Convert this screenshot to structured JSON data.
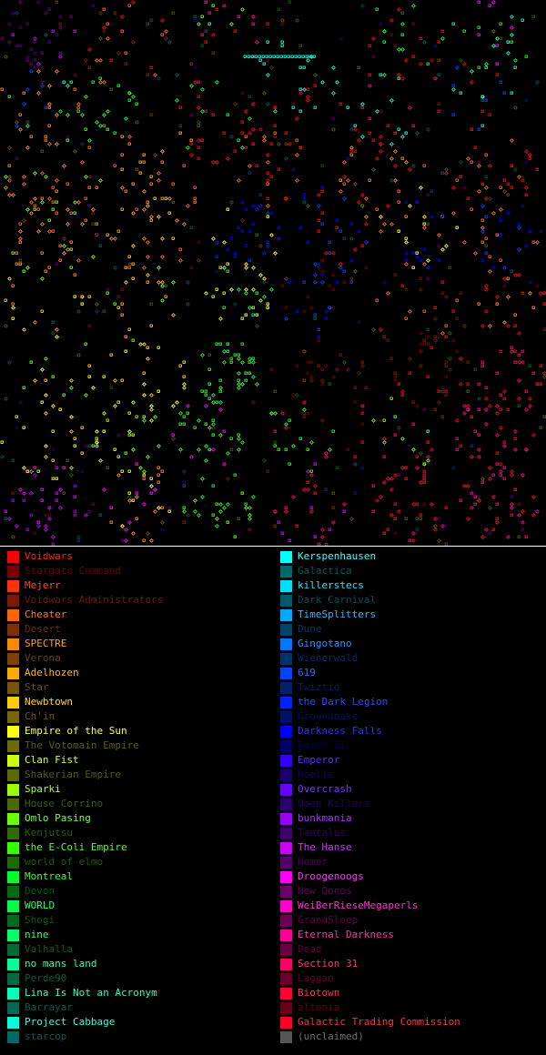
{
  "map": {
    "background": "#000000",
    "grid_cells": 150
  },
  "legend": {
    "left": [
      {
        "name": "Voidwars",
        "color": "#ff0000",
        "text": "#ff2020"
      },
      {
        "name": "Stargate Command",
        "color": "#7a0000",
        "text": "#6a0000"
      },
      {
        "name": "Mejerr",
        "color": "#ff3300",
        "text": "#ff4a20"
      },
      {
        "name": "Voidwars Administrators",
        "color": "#7a1a00",
        "text": "#6a1a00"
      },
      {
        "name": "Cheater",
        "color": "#ff6600",
        "text": "#ff7a20"
      },
      {
        "name": "Desert",
        "color": "#7a3300",
        "text": "#6a3000"
      },
      {
        "name": "SPECTRE",
        "color": "#ff8800",
        "text": "#ff9a20"
      },
      {
        "name": "Verona",
        "color": "#7a4400",
        "text": "#6a4200"
      },
      {
        "name": "Adelhozen",
        "color": "#ffaa00",
        "text": "#ffb820"
      },
      {
        "name": "Star",
        "color": "#7a5500",
        "text": "#6a5000"
      },
      {
        "name": "Newbtown",
        "color": "#ffcc00",
        "text": "#ffd420"
      },
      {
        "name": "Ch'in",
        "color": "#7a6600",
        "text": "#6a5c00"
      },
      {
        "name": "Empire of the Sun",
        "color": "#ffff00",
        "text": "#ffff30"
      },
      {
        "name": "The Votomain Empire",
        "color": "#6a6a00",
        "text": "#5e5e00"
      },
      {
        "name": "Clan Fist",
        "color": "#ccff00",
        "text": "#d4ff30"
      },
      {
        "name": "Shakerian Empire",
        "color": "#5a6a00",
        "text": "#4e5e00"
      },
      {
        "name": "Sparki",
        "color": "#99ff00",
        "text": "#aaff30"
      },
      {
        "name": "House Corrino",
        "color": "#4a6a00",
        "text": "#405e00"
      },
      {
        "name": "Omlo Pasing",
        "color": "#66ff00",
        "text": "#7aff30"
      },
      {
        "name": "Kenjutsu",
        "color": "#336a00",
        "text": "#2e5e00"
      },
      {
        "name": "the E-Coli Empire",
        "color": "#33ff00",
        "text": "#55ff30"
      },
      {
        "name": "world of elmo",
        "color": "#1a6a00",
        "text": "#1a5e00"
      },
      {
        "name": "Montreal",
        "color": "#00ff22",
        "text": "#30ff40"
      },
      {
        "name": "Devon",
        "color": "#006a10",
        "text": "#005e10"
      },
      {
        "name": "WORLD",
        "color": "#00ff44",
        "text": "#30ff60"
      },
      {
        "name": "Shogi",
        "color": "#006a20",
        "text": "#005e20"
      },
      {
        "name": "nine",
        "color": "#00ff66",
        "text": "#30ff80"
      },
      {
        "name": "Valhalla",
        "color": "#006a30",
        "text": "#005e30"
      },
      {
        "name": "no mans land",
        "color": "#00ff99",
        "text": "#30ffa0"
      },
      {
        "name": "Perde90",
        "color": "#006a44",
        "text": "#005e40"
      },
      {
        "name": "Lina Is Not an Acronym",
        "color": "#00ffbb",
        "text": "#30ffc0"
      },
      {
        "name": "Barrayar",
        "color": "#006a55",
        "text": "#005e50"
      },
      {
        "name": "Project Cabbage",
        "color": "#00ffdd",
        "text": "#30ffe0"
      },
      {
        "name": "starcop",
        "color": "#006a66",
        "text": "#005e5e"
      }
    ],
    "right": [
      {
        "name": "Kerspenhausen",
        "color": "#00ffff",
        "text": "#40ffff"
      },
      {
        "name": "Galactica",
        "color": "#006a6a",
        "text": "#005e60"
      },
      {
        "name": "killerstecs",
        "color": "#00ddff",
        "text": "#30e0ff"
      },
      {
        "name": "Dark Carnival",
        "color": "#005a6a",
        "text": "#00505e"
      },
      {
        "name": "TimeSplitters",
        "color": "#00aaff",
        "text": "#30b8ff"
      },
      {
        "name": "Dune",
        "color": "#00446a",
        "text": "#003e60"
      },
      {
        "name": "Gingotano",
        "color": "#0077ff",
        "text": "#3090ff"
      },
      {
        "name": "Wienerwald",
        "color": "#00336a",
        "text": "#002e60"
      },
      {
        "name": "619",
        "color": "#0044ff",
        "text": "#3066ff"
      },
      {
        "name": "Twiztid",
        "color": "#00226a",
        "text": "#001e60"
      },
      {
        "name": "the Dark Legion",
        "color": "#0022ff",
        "text": "#3048ff"
      },
      {
        "name": "Groundbake",
        "color": "#00116a",
        "text": "#001060"
      },
      {
        "name": "Darkness Falls",
        "color": "#0000ff",
        "text": "#3030ff"
      },
      {
        "name": "Earth II",
        "color": "#00006a",
        "text": "#000060"
      },
      {
        "name": "Emperor",
        "color": "#3300ff",
        "text": "#5530ff"
      },
      {
        "name": "Hoelle",
        "color": "#1a006a",
        "text": "#160060"
      },
      {
        "name": "Overcrash",
        "color": "#6600ff",
        "text": "#7a30ff"
      },
      {
        "name": "Omen Killers",
        "color": "#2a006a",
        "text": "#260060"
      },
      {
        "name": "bunkmania",
        "color": "#9900ff",
        "text": "#aa30ff"
      },
      {
        "name": "Tantalus",
        "color": "#40006a",
        "text": "#3a0060"
      },
      {
        "name": "The Hanse",
        "color": "#cc00ff",
        "text": "#d430ff"
      },
      {
        "name": "Homer",
        "color": "#55006a",
        "text": "#4e0060"
      },
      {
        "name": "Droogenoogs",
        "color": "#ff00ff",
        "text": "#ff30ff"
      },
      {
        "name": "New Qonos",
        "color": "#6a006a",
        "text": "#600060"
      },
      {
        "name": "WeiBerRieseMegaperls",
        "color": "#ff00cc",
        "text": "#ff30d4"
      },
      {
        "name": "GrandSleep",
        "color": "#6a0055",
        "text": "#60004e"
      },
      {
        "name": "Eternal Darkness",
        "color": "#ff0099",
        "text": "#ff30aa"
      },
      {
        "name": "Dead",
        "color": "#6a0040",
        "text": "#60003a"
      },
      {
        "name": "Section 31",
        "color": "#ff0066",
        "text": "#ff3080"
      },
      {
        "name": "Laggan",
        "color": "#6a002a",
        "text": "#600026"
      },
      {
        "name": "Biotown",
        "color": "#ff0033",
        "text": "#ff3055"
      },
      {
        "name": "altonia",
        "color": "#6a0016",
        "text": "#600014"
      },
      {
        "name": "Galactic Trading Commission",
        "color": "#ff0022",
        "text": "#ff3048"
      },
      {
        "name": "(unclaimed)",
        "color": "#555555",
        "text": "#707070"
      }
    ]
  }
}
